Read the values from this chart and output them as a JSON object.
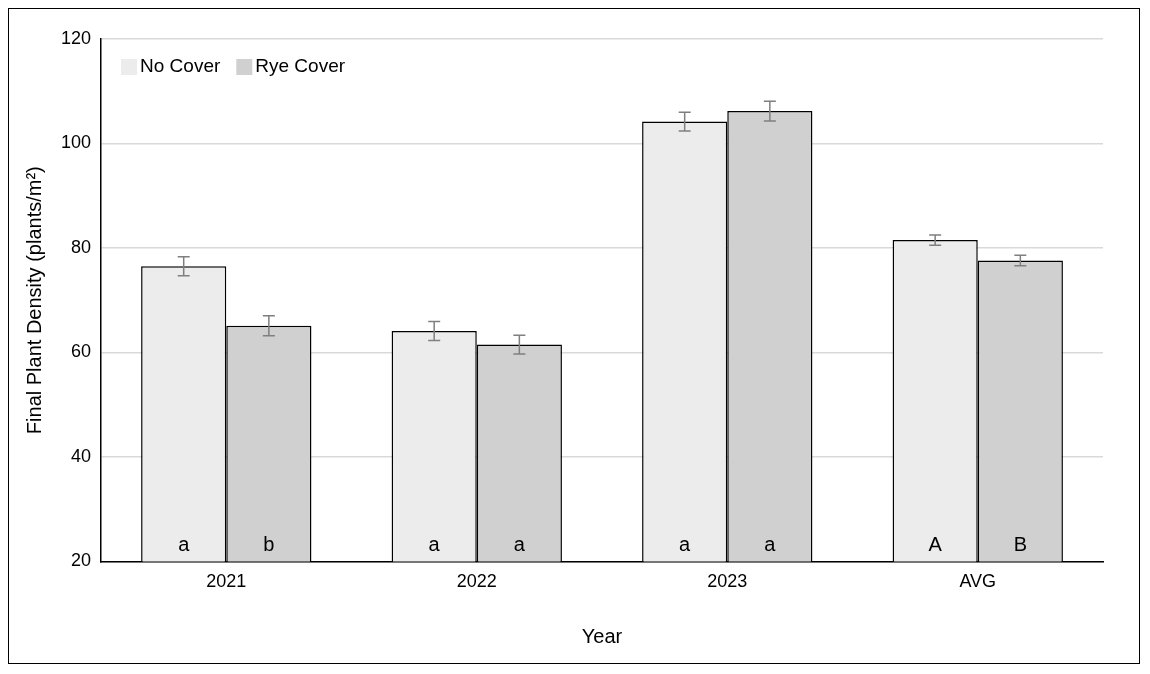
{
  "chart_data": {
    "type": "bar",
    "xlabel": "Year",
    "ylabel": "Final Plant Density (plants/m²)",
    "categories": [
      "2021",
      "2022",
      "2023",
      "AVG"
    ],
    "series": [
      {
        "name": "No Cover",
        "color": "#ececec",
        "values": [
          76.5,
          64.1,
          104.2,
          81.5
        ],
        "errors": [
          1.8,
          1.8,
          1.8,
          1.0
        ],
        "value_labels": [
          "a",
          "a",
          "a",
          "A"
        ]
      },
      {
        "name": "Rye Cover",
        "color": "#d0d0d0",
        "values": [
          65.1,
          61.5,
          106.2,
          77.6
        ],
        "errors": [
          1.9,
          1.8,
          1.9,
          1.0
        ],
        "value_labels": [
          "b",
          "a",
          "a",
          "B"
        ]
      }
    ],
    "ylim": [
      20,
      120
    ],
    "yticks": [
      20,
      40,
      60,
      80,
      100,
      120
    ],
    "grid": "y",
    "legend": "top left"
  }
}
